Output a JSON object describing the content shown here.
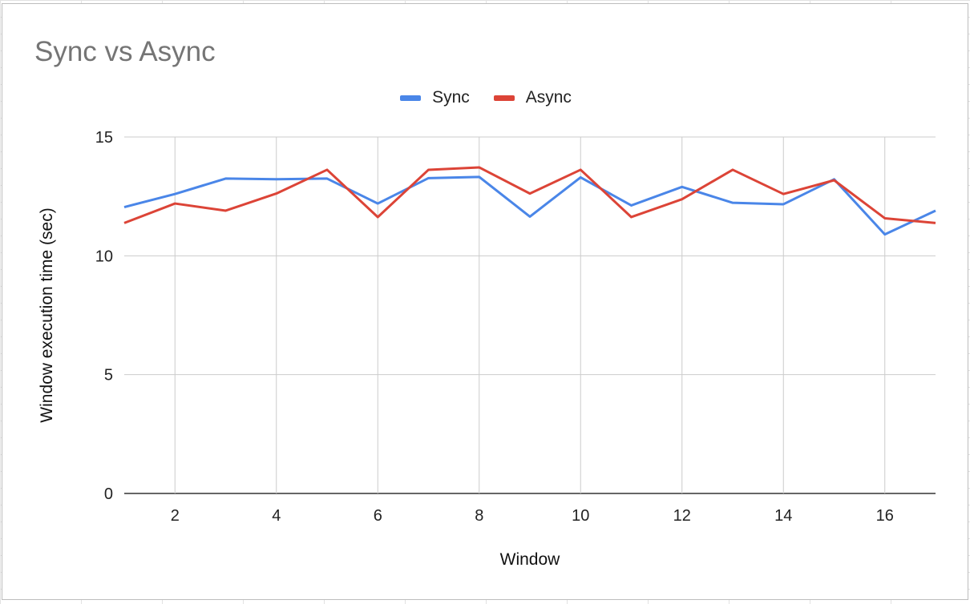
{
  "chart_data": {
    "type": "line",
    "title": "Sync vs Async",
    "xlabel": "Window",
    "ylabel": "Window execution time (sec)",
    "x": [
      1,
      2,
      3,
      4,
      5,
      6,
      7,
      8,
      9,
      10,
      11,
      12,
      13,
      14,
      15,
      16,
      17
    ],
    "xlim": [
      1,
      17
    ],
    "ylim": [
      0,
      15
    ],
    "x_ticks": [
      2,
      4,
      6,
      8,
      10,
      12,
      14,
      16
    ],
    "y_ticks": [
      0,
      5,
      10,
      15
    ],
    "grid": true,
    "legend_position": "top-center",
    "series": [
      {
        "name": "Sync",
        "color": "#4a86e8",
        "values": [
          12.05,
          12.6,
          13.25,
          13.22,
          13.25,
          12.2,
          13.27,
          13.32,
          11.65,
          13.3,
          12.12,
          12.9,
          12.23,
          12.17,
          13.22,
          10.9,
          11.9
        ]
      },
      {
        "name": "Async",
        "color": "#dc4437",
        "values": [
          11.38,
          12.2,
          11.9,
          12.62,
          13.62,
          11.63,
          13.62,
          13.72,
          12.62,
          13.62,
          11.63,
          12.38,
          13.62,
          12.6,
          13.18,
          11.58,
          11.38
        ]
      }
    ]
  }
}
